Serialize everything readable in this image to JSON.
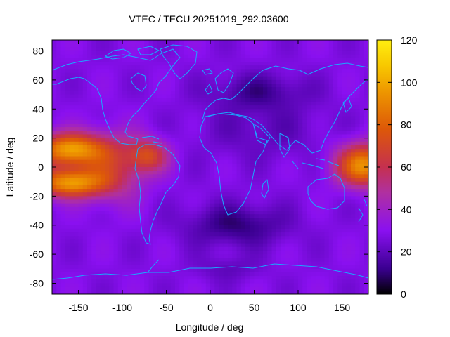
{
  "chart_data": {
    "type": "heatmap",
    "title": "VTEC / TECU 20251019_292.03600",
    "xlabel": "Longitude / deg",
    "ylabel": "Latitude / deg",
    "xlim": [
      -180,
      180
    ],
    "ylim": [
      -87.5,
      87.5
    ],
    "x_ticks": [
      -150,
      -100,
      -50,
      0,
      50,
      100,
      150
    ],
    "y_ticks": [
      -80,
      -60,
      -40,
      -20,
      0,
      20,
      40,
      60,
      80
    ],
    "colorbar": {
      "min": 0,
      "max": 120,
      "ticks": [
        0,
        20,
        40,
        60,
        80,
        100,
        120
      ],
      "colormap": "gnuplot (black-purple-red-yellow)"
    },
    "grid_resolution": {
      "dlon": 5,
      "dlat": 2.5
    },
    "features": [
      {
        "name": "Eastern-Pacific / American crest",
        "lon_center": -155,
        "lat_north": 14,
        "lat_south": -14,
        "peak_value": 100
      },
      {
        "name": "Western-Pacific crest",
        "lon_center": 170,
        "lat_north": 8,
        "lat_south": -4,
        "peak_value": 78
      },
      {
        "name": "Atlantic crest",
        "lon_center": -70,
        "lat_north": 15,
        "lat_south": -3,
        "peak_value": 70
      },
      {
        "name": "Southern hemisphere minimum",
        "lon_center": 20,
        "lat_center": -40,
        "value": 10
      },
      {
        "name": "Northern midlatitude minimum",
        "lon_center": 60,
        "lat_center": 50,
        "value": 16
      }
    ],
    "background_value": 28,
    "coastlines": true
  }
}
